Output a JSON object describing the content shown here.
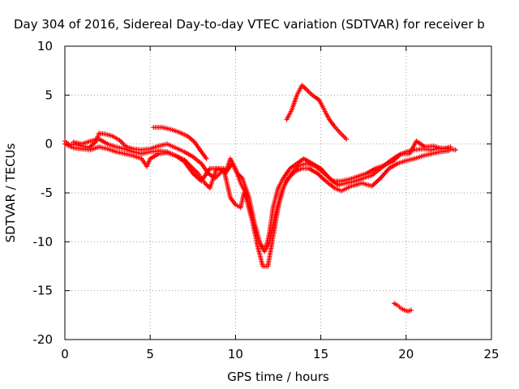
{
  "chart_data": {
    "type": "scatter",
    "title": "Day 304 of 2016, Sidereal Day-to-day VTEC variation (SDTVAR) for receiver b",
    "xlabel": "GPS time / hours",
    "ylabel": "SDTVAR / TECUs",
    "xlim": [
      0,
      25
    ],
    "ylim": [
      -20,
      10
    ],
    "xticks": [
      "0",
      "5",
      "10",
      "15",
      "20",
      "25"
    ],
    "yticks": [
      "-20",
      "-15",
      "-10",
      "-5",
      "0",
      "5",
      "10"
    ],
    "grid": true,
    "marker": "plus",
    "color": "#ff0000",
    "series": [
      {
        "values": [
          [
            0.0,
            0.3
          ],
          [
            0.3,
            -0.1
          ],
          [
            0.6,
            0.0
          ],
          [
            1.0,
            -0.2
          ],
          [
            1.4,
            -0.4
          ],
          [
            1.8,
            0.2
          ],
          [
            2.0,
            1.1
          ],
          [
            2.4,
            1.0
          ],
          [
            2.8,
            0.8
          ],
          [
            3.2,
            0.4
          ],
          [
            3.6,
            -0.3
          ],
          [
            4.0,
            -0.5
          ],
          [
            4.5,
            -0.6
          ],
          [
            5.0,
            -0.5
          ],
          [
            5.5,
            -0.2
          ],
          [
            6.0,
            0.0
          ],
          [
            6.5,
            -0.4
          ],
          [
            7.0,
            -0.8
          ],
          [
            7.5,
            -1.3
          ],
          [
            8.0,
            -2.0
          ],
          [
            8.4,
            -3.0
          ],
          [
            8.8,
            -3.5
          ],
          [
            9.2,
            -2.8
          ],
          [
            9.5,
            -2.5
          ],
          [
            9.7,
            -1.5
          ],
          [
            10.0,
            -2.5
          ],
          [
            10.3,
            -4.0
          ],
          [
            10.6,
            -5.0
          ],
          [
            10.9,
            -7.0
          ],
          [
            11.2,
            -9.0
          ],
          [
            11.5,
            -10.5
          ],
          [
            11.8,
            -10.5
          ],
          [
            12.0,
            -9.0
          ],
          [
            12.2,
            -6.5
          ],
          [
            12.5,
            -4.5
          ],
          [
            12.8,
            -3.5
          ],
          [
            13.2,
            -2.5
          ],
          [
            13.6,
            -2.0
          ],
          [
            14.0,
            -1.5
          ],
          [
            14.5,
            -2.0
          ],
          [
            15.0,
            -2.5
          ],
          [
            15.5,
            -3.5
          ],
          [
            16.0,
            -4.2
          ],
          [
            16.5,
            -4.0
          ],
          [
            17.0,
            -3.8
          ],
          [
            17.5,
            -3.5
          ],
          [
            18.0,
            -3.2
          ],
          [
            18.5,
            -2.5
          ],
          [
            19.0,
            -1.8
          ],
          [
            19.5,
            -1.2
          ],
          [
            20.0,
            -0.8
          ],
          [
            20.5,
            -0.6
          ],
          [
            21.0,
            -0.5
          ],
          [
            21.5,
            -0.6
          ],
          [
            22.0,
            -0.4
          ],
          [
            22.5,
            -0.5
          ],
          [
            22.9,
            -0.6
          ]
        ]
      },
      {
        "values": [
          [
            0.0,
            0.0
          ],
          [
            0.5,
            -0.4
          ],
          [
            1.0,
            -0.5
          ],
          [
            1.5,
            -0.6
          ],
          [
            2.0,
            -0.3
          ],
          [
            2.5,
            -0.5
          ],
          [
            3.0,
            -0.8
          ],
          [
            3.5,
            -1.0
          ],
          [
            4.0,
            -1.2
          ],
          [
            4.5,
            -1.5
          ],
          [
            4.8,
            -2.3
          ],
          [
            5.0,
            -1.5
          ],
          [
            5.5,
            -1.0
          ],
          [
            6.0,
            -0.9
          ],
          [
            6.5,
            -1.2
          ],
          [
            7.0,
            -1.6
          ],
          [
            7.5,
            -2.5
          ],
          [
            7.8,
            -3.0
          ],
          [
            8.0,
            -3.5
          ],
          [
            8.2,
            -4.0
          ],
          [
            8.5,
            -4.5
          ],
          [
            8.9,
            -2.5
          ],
          [
            9.3,
            -2.5
          ],
          [
            9.7,
            -5.5
          ],
          [
            10.0,
            -6.2
          ],
          [
            10.3,
            -6.5
          ],
          [
            10.5,
            -5.0
          ],
          [
            10.7,
            -6.0
          ],
          [
            11.0,
            -8.0
          ],
          [
            11.3,
            -10.5
          ],
          [
            11.6,
            -12.5
          ],
          [
            11.9,
            -12.5
          ],
          [
            12.1,
            -10.5
          ],
          [
            12.3,
            -8.5
          ],
          [
            12.5,
            -6.5
          ],
          [
            12.8,
            -4.5
          ],
          [
            13.1,
            -3.5
          ],
          [
            13.5,
            -2.8
          ],
          [
            13.9,
            -2.5
          ],
          [
            14.3,
            -2.5
          ],
          [
            14.8,
            -3.0
          ],
          [
            15.3,
            -3.8
          ],
          [
            15.8,
            -4.5
          ],
          [
            16.2,
            -4.8
          ],
          [
            16.8,
            -4.3
          ],
          [
            17.4,
            -4.0
          ],
          [
            18.0,
            -4.3
          ],
          [
            18.5,
            -3.5
          ],
          [
            19.0,
            -2.5
          ],
          [
            19.5,
            -2.0
          ],
          [
            20.0,
            -1.7
          ],
          [
            20.5,
            -1.5
          ],
          [
            21.0,
            -1.2
          ],
          [
            21.5,
            -1.0
          ],
          [
            22.0,
            -0.8
          ],
          [
            22.5,
            -0.7
          ]
        ]
      },
      {
        "values": [
          [
            0.5,
            0.2
          ],
          [
            1.0,
            0.0
          ],
          [
            1.5,
            0.3
          ],
          [
            2.0,
            0.5
          ],
          [
            2.5,
            0.0
          ],
          [
            3.0,
            -0.3
          ],
          [
            3.5,
            -0.5
          ],
          [
            4.0,
            -0.8
          ],
          [
            4.5,
            -1.0
          ],
          [
            5.0,
            -0.8
          ],
          [
            5.5,
            -0.7
          ],
          [
            6.0,
            -0.8
          ],
          [
            6.5,
            -1.2
          ],
          [
            7.0,
            -1.8
          ],
          [
            7.5,
            -3.0
          ],
          [
            8.0,
            -3.8
          ],
          [
            8.5,
            -2.5
          ],
          [
            9.0,
            -2.5
          ],
          [
            9.4,
            -3.0
          ],
          [
            9.8,
            -2.0
          ],
          [
            10.1,
            -3.0
          ],
          [
            10.4,
            -3.5
          ],
          [
            10.8,
            -5.5
          ],
          [
            11.1,
            -8.0
          ],
          [
            11.4,
            -10.0
          ],
          [
            11.7,
            -11.0
          ],
          [
            12.0,
            -10.0
          ],
          [
            12.3,
            -7.5
          ],
          [
            12.6,
            -5.5
          ],
          [
            12.9,
            -4.0
          ],
          [
            13.3,
            -3.0
          ],
          [
            13.7,
            -2.2
          ],
          [
            14.2,
            -2.0
          ],
          [
            14.7,
            -2.3
          ],
          [
            15.2,
            -3.0
          ],
          [
            15.7,
            -3.8
          ],
          [
            16.2,
            -3.8
          ],
          [
            16.7,
            -3.6
          ],
          [
            17.2,
            -3.3
          ],
          [
            17.7,
            -3.0
          ],
          [
            18.2,
            -2.5
          ],
          [
            18.7,
            -2.2
          ],
          [
            19.2,
            -1.8
          ],
          [
            19.7,
            -1.0
          ],
          [
            20.2,
            -1.0
          ],
          [
            20.6,
            0.3
          ],
          [
            21.1,
            -0.3
          ],
          [
            21.6,
            -0.2
          ],
          [
            22.1,
            -0.5
          ],
          [
            22.6,
            -0.3
          ]
        ]
      },
      {
        "values": [
          [
            5.2,
            1.7
          ],
          [
            5.7,
            1.7
          ],
          [
            6.2,
            1.5
          ],
          [
            6.7,
            1.2
          ],
          [
            7.2,
            0.8
          ],
          [
            7.6,
            0.2
          ],
          [
            8.0,
            -0.8
          ],
          [
            8.3,
            -1.5
          ]
        ]
      },
      {
        "values": [
          [
            13.0,
            2.5
          ],
          [
            13.3,
            3.5
          ],
          [
            13.6,
            5.0
          ],
          [
            13.9,
            6.0
          ],
          [
            14.2,
            5.5
          ],
          [
            14.5,
            5.0
          ],
          [
            14.9,
            4.5
          ],
          [
            15.2,
            3.5
          ],
          [
            15.5,
            2.5
          ],
          [
            15.8,
            1.8
          ],
          [
            16.1,
            1.2
          ],
          [
            16.5,
            0.5
          ]
        ]
      },
      {
        "values": [
          [
            19.3,
            -16.3
          ],
          [
            19.5,
            -16.5
          ],
          [
            19.7,
            -16.8
          ],
          [
            19.9,
            -17.0
          ],
          [
            20.1,
            -17.1
          ],
          [
            20.3,
            -17.0
          ]
        ]
      }
    ]
  }
}
